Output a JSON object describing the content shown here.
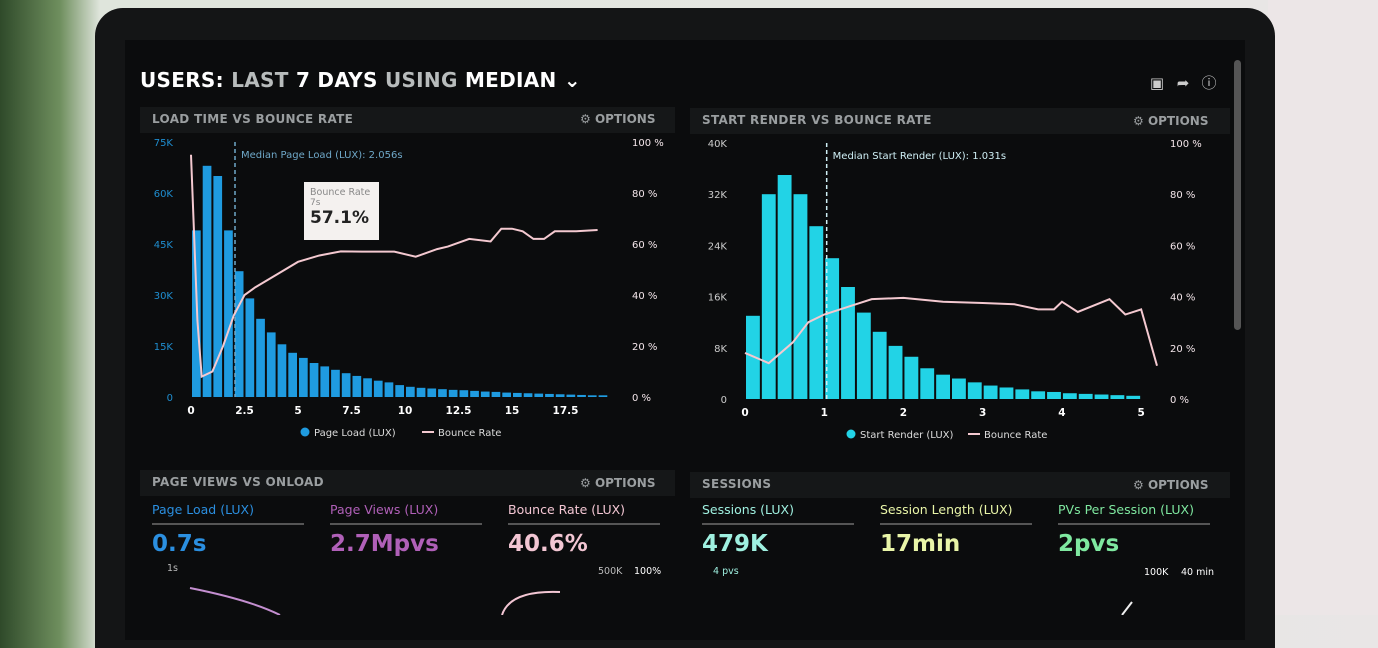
{
  "header": {
    "title_parts": [
      "USERS:",
      "LAST",
      "7 DAYS",
      "USING",
      "MEDIAN"
    ],
    "icons": [
      "monitor-icon",
      "share-icon",
      "help-icon"
    ]
  },
  "options_label": "OPTIONS",
  "colors": {
    "page_load": "#1f9be0",
    "start_render": "#22d3e6",
    "bounce": "#f4c9d0",
    "background": "#0b0c0d"
  },
  "chart_data": [
    {
      "type": "bar",
      "title": "LOAD TIME VS BOUNCE RATE",
      "median_label": "Median Page Load (LUX): 2.056s",
      "median_x": 2.056,
      "x_ticks": [
        "0",
        "2.5",
        "5",
        "7.5",
        "10",
        "12.5",
        "15",
        "17.5"
      ],
      "y_ticks": [
        "0",
        "15K",
        "30K",
        "45K",
        "60K",
        "75K"
      ],
      "y2_ticks": [
        "0 %",
        "20 %",
        "40 %",
        "60 %",
        "80 %",
        "100 %"
      ],
      "xlim": [
        0,
        20
      ],
      "ylim": [
        0,
        75000
      ],
      "y2lim": [
        0,
        100
      ],
      "bin_width": 0.5,
      "series": [
        {
          "name": "Page Load (LUX)",
          "type": "bar",
          "x": [
            0,
            0.5,
            1,
            1.5,
            2,
            2.5,
            3,
            3.5,
            4,
            4.5,
            5,
            5.5,
            6,
            6.5,
            7,
            7.5,
            8,
            8.5,
            9,
            9.5,
            10,
            10.5,
            11,
            11.5,
            12,
            12.5,
            13,
            13.5,
            14,
            14.5,
            15,
            15.5,
            16,
            16.5,
            17,
            17.5,
            18,
            18.5,
            19
          ],
          "values": [
            49000,
            68000,
            65000,
            49000,
            37000,
            29000,
            23000,
            19000,
            15500,
            13000,
            11500,
            10000,
            9000,
            8000,
            7000,
            6200,
            5500,
            4800,
            4300,
            3500,
            3000,
            2700,
            2500,
            2300,
            2100,
            2000,
            1800,
            1600,
            1500,
            1300,
            1200,
            1100,
            1000,
            900,
            800,
            700,
            600,
            500,
            500
          ]
        },
        {
          "name": "Bounce Rate",
          "type": "line",
          "axis": "right",
          "x": [
            0,
            0.3,
            0.5,
            1,
            1.5,
            2,
            2.5,
            3,
            4,
            5,
            6,
            7,
            8,
            9.5,
            10.5,
            11.5,
            12,
            13,
            14,
            14.5,
            15,
            15.5,
            16,
            16.5,
            17,
            18,
            19
          ],
          "values": [
            95,
            30,
            8,
            10,
            20,
            32,
            40,
            43,
            48,
            53,
            55.5,
            57.1,
            57,
            57,
            55,
            58,
            59,
            62,
            61,
            66,
            66,
            65,
            62,
            62,
            65,
            65,
            65.5
          ]
        }
      ],
      "tooltip": {
        "title": "Bounce Rate",
        "sub": "7s",
        "value": "57.1%"
      }
    },
    {
      "type": "bar",
      "title": "START RENDER VS BOUNCE RATE",
      "median_label": "Median Start Render (LUX): 1.031s",
      "median_x": 1.031,
      "x_ticks": [
        "0",
        "1",
        "2",
        "3",
        "4",
        "5"
      ],
      "y_ticks": [
        "0",
        "8K",
        "16K",
        "24K",
        "32K",
        "40K"
      ],
      "y2_ticks": [
        "0 %",
        "20 %",
        "40 %",
        "60 %",
        "80 %",
        "100 %"
      ],
      "xlim": [
        0,
        5.2
      ],
      "ylim": [
        0,
        40000
      ],
      "y2lim": [
        0,
        100
      ],
      "bin_width": 0.2,
      "series": [
        {
          "name": "Start Render (LUX)",
          "type": "bar",
          "x": [
            0.1,
            0.3,
            0.5,
            0.7,
            0.9,
            1.1,
            1.3,
            1.5,
            1.7,
            1.9,
            2.1,
            2.3,
            2.5,
            2.7,
            2.9,
            3.1,
            3.3,
            3.5,
            3.7,
            3.9,
            4.1,
            4.3,
            4.5,
            4.7,
            4.9
          ],
          "values": [
            13000,
            32000,
            35000,
            32000,
            27000,
            22000,
            17500,
            13500,
            10500,
            8300,
            6600,
            4800,
            3800,
            3200,
            2600,
            2100,
            1800,
            1500,
            1200,
            1100,
            900,
            800,
            700,
            600,
            500
          ]
        },
        {
          "name": "Bounce Rate",
          "type": "line",
          "axis": "right",
          "x": [
            0,
            0.3,
            0.6,
            0.8,
            1,
            1.3,
            1.6,
            2,
            2.5,
            3,
            3.4,
            3.7,
            3.9,
            4,
            4.2,
            4.6,
            4.8,
            5,
            5.2
          ],
          "values": [
            18,
            14,
            22,
            30,
            33,
            36,
            39,
            39.5,
            38,
            37.5,
            37,
            35,
            35,
            38,
            34,
            39,
            33,
            35,
            13
          ]
        }
      ]
    }
  ],
  "page_views": {
    "title": "PAGE VIEWS VS ONLOAD",
    "kpis": [
      {
        "label": "Page Load (LUX)",
        "value": "0.7s",
        "color": "#2b8fe0"
      },
      {
        "label": "Page Views (LUX)",
        "value": "2.7Mpvs",
        "color": "#b060b8"
      },
      {
        "label": "Bounce Rate (LUX)",
        "value": "40.6%",
        "color": "#f3c6d3"
      }
    ],
    "axis_labels": [
      "1s",
      "500K",
      "100%"
    ]
  },
  "sessions": {
    "title": "SESSIONS",
    "kpis": [
      {
        "label": "Sessions (LUX)",
        "value": "479K",
        "color": "#9ff0e0"
      },
      {
        "label": "Session Length (LUX)",
        "value": "17min",
        "color": "#e9f5a8"
      },
      {
        "label": "PVs Per Session (LUX)",
        "value": "2pvs",
        "color": "#7fe8a0"
      }
    ],
    "axis_labels": [
      "4 pvs",
      "100K",
      "40 min"
    ]
  }
}
